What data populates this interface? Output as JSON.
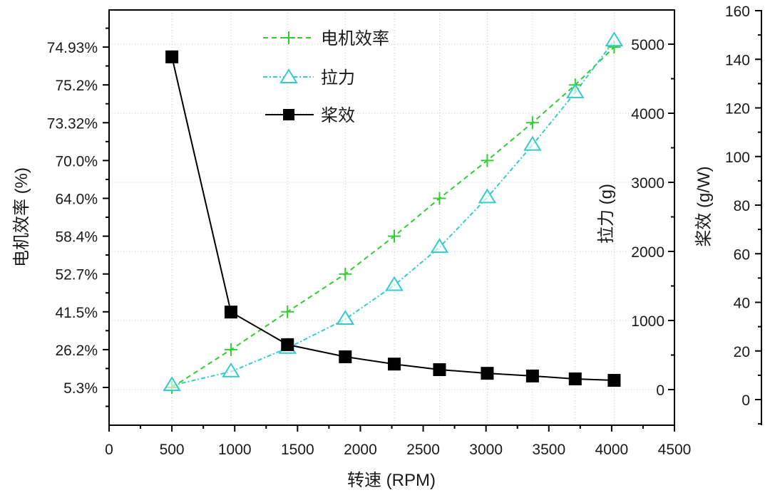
{
  "chart_data": {
    "type": "line",
    "title": "",
    "xlabel": "转速 (RPM)",
    "xlim": [
      0,
      4500
    ],
    "xticks": [
      0,
      500,
      1000,
      1500,
      2000,
      2500,
      3000,
      3500,
      4000,
      4500
    ],
    "xtick_labels": [
      "0",
      "500",
      "1000",
      "1500",
      "2000",
      "2500",
      "3000",
      "3500",
      "4000",
      "4500"
    ],
    "x": [
      500,
      970,
      1420,
      1880,
      2270,
      2630,
      3010,
      3370,
      3710,
      4020
    ],
    "grid": true,
    "legend_position": "top-center",
    "y_axes": [
      {
        "id": "left",
        "label": "电机效率 (%)",
        "scale": "categorical",
        "tick_labels": [
          "5.3%",
          "26.2%",
          "41.5%",
          "52.7%",
          "58.4%",
          "64.0%",
          "70.0%",
          "73.32%",
          "75.2%",
          "74.93%"
        ]
      },
      {
        "id": "right1",
        "label": "拉力 (g)",
        "ylim": [
          -200,
          5500
        ],
        "ticks": [
          0,
          1000,
          2000,
          3000,
          4000,
          5000
        ],
        "tick_labels": [
          "0",
          "1000",
          "2000",
          "3000",
          "4000",
          "5000"
        ]
      },
      {
        "id": "right2",
        "label": "桨效 (g/W)",
        "ylim": [
          -10,
          160
        ],
        "ticks": [
          0,
          20,
          40,
          60,
          80,
          100,
          120,
          140,
          160
        ],
        "tick_labels": [
          "0",
          "20",
          "40",
          "60",
          "80",
          "100",
          "120",
          "140",
          "160"
        ]
      }
    ],
    "series": [
      {
        "name": "电机效率",
        "axis": "left",
        "color": "#33cc33",
        "marker": "plus",
        "line": "dashed",
        "values": [
          5.3,
          26.2,
          41.5,
          52.7,
          58.4,
          64.0,
          70.0,
          73.32,
          75.2,
          74.93
        ]
      },
      {
        "name": "拉力",
        "axis": "right1",
        "color": "#33cccc",
        "marker": "triangle",
        "line": "dash-dot",
        "values": [
          60,
          260,
          600,
          1020,
          1510,
          2060,
          2780,
          3540,
          4300,
          5050
        ]
      },
      {
        "name": "桨效",
        "axis": "right2",
        "color": "#000000",
        "marker": "square",
        "line": "solid",
        "values": [
          141,
          36,
          22.6,
          17.6,
          14.6,
          12.3,
          10.8,
          9.7,
          8.5,
          7.9
        ]
      }
    ]
  }
}
